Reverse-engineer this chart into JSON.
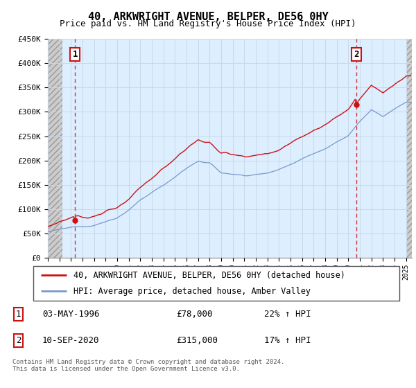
{
  "title": "40, ARKWRIGHT AVENUE, BELPER, DE56 0HY",
  "subtitle": "Price paid vs. HM Land Registry's House Price Index (HPI)",
  "ylim": [
    0,
    450000
  ],
  "yticks": [
    0,
    50000,
    100000,
    150000,
    200000,
    250000,
    300000,
    350000,
    400000,
    450000
  ],
  "xlim_start": 1994.0,
  "xlim_end": 2025.5,
  "hatch_left_end": 1995.25,
  "hatch_right_start": 2025.0,
  "sale1_date": 1996.35,
  "sale1_price": 78000,
  "sale2_date": 2020.7,
  "sale2_price": 315000,
  "legend_line1": "40, ARKWRIGHT AVENUE, BELPER, DE56 0HY (detached house)",
  "legend_line2": "HPI: Average price, detached house, Amber Valley",
  "note1_date": "03-MAY-1996",
  "note1_price": "£78,000",
  "note1_hpi": "22% ↑ HPI",
  "note2_date": "10-SEP-2020",
  "note2_price": "£315,000",
  "note2_hpi": "17% ↑ HPI",
  "footer": "Contains HM Land Registry data © Crown copyright and database right 2024.\nThis data is licensed under the Open Government Licence v3.0.",
  "grid_color": "#c8d8e8",
  "bg_color": "#ddeeff",
  "hatch_color": "#bbbbbb",
  "line_red": "#cc1111",
  "line_blue": "#7799cc",
  "dot_color": "#cc1111",
  "vline_color": "#cc2222",
  "box_edge_color": "#cc1111",
  "title_fontsize": 11,
  "subtitle_fontsize": 9,
  "tick_fontsize": 8,
  "legend_fontsize": 8.5,
  "note_fontsize": 9,
  "footer_fontsize": 6.5
}
